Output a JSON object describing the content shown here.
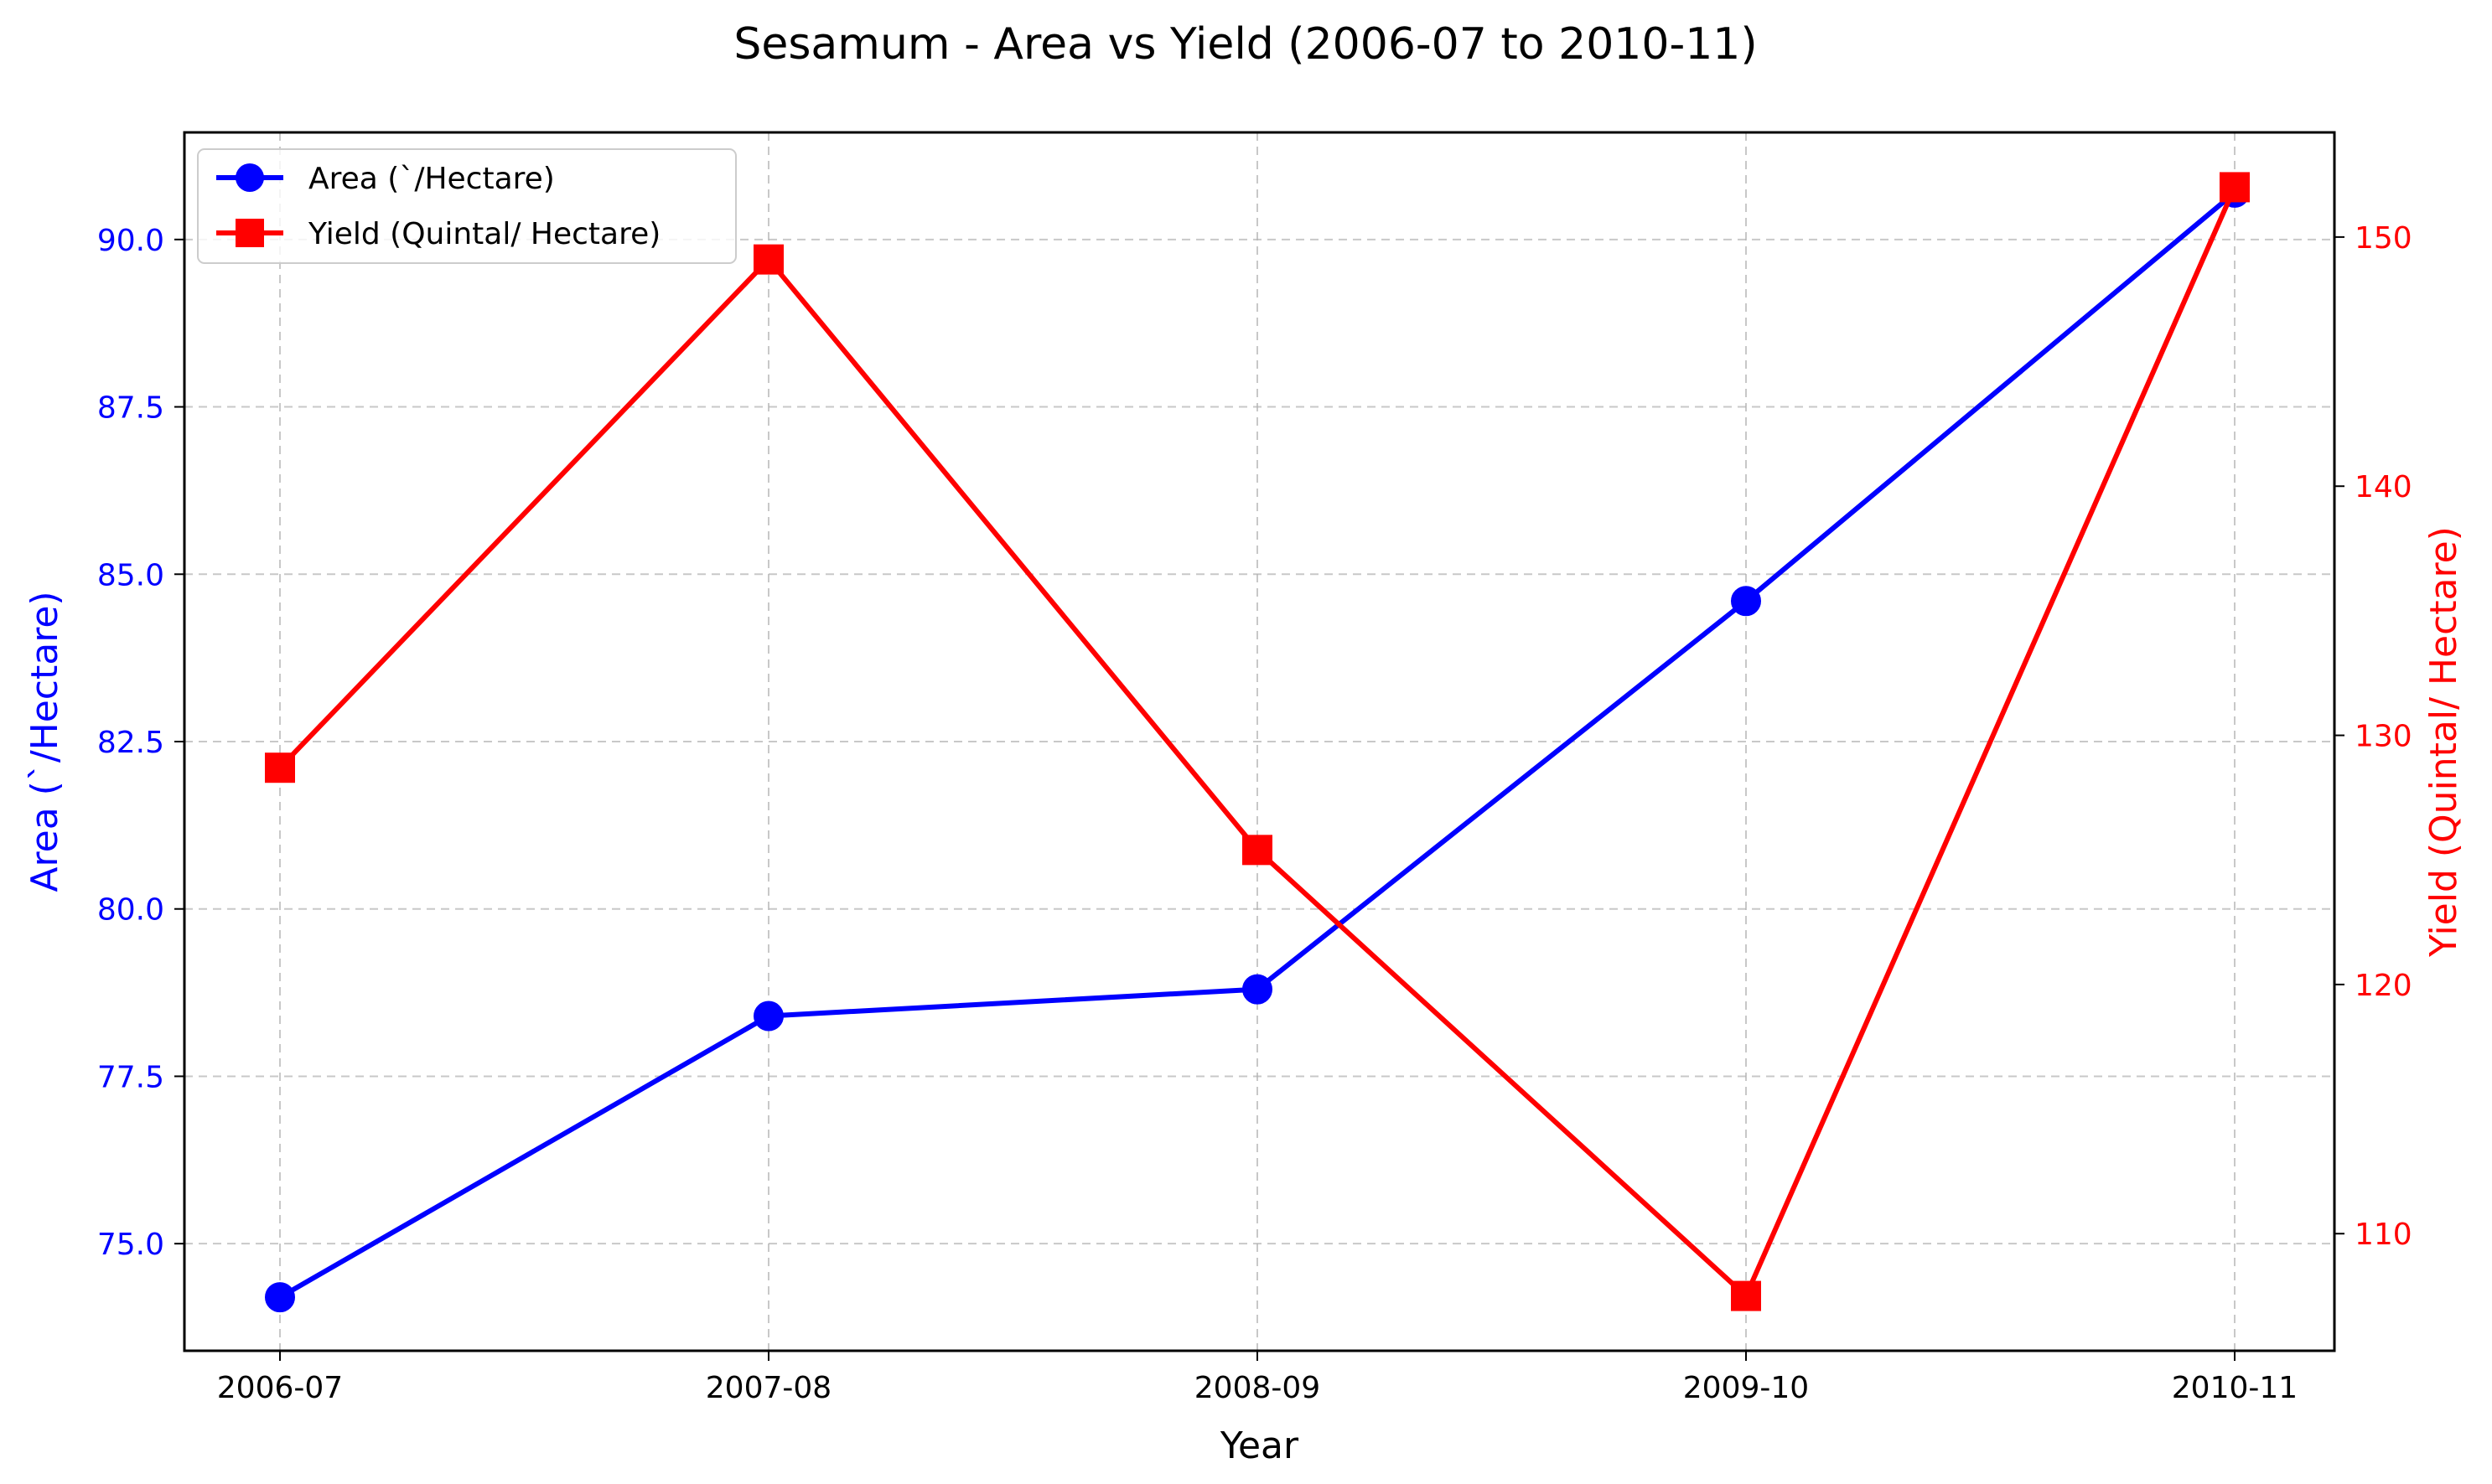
{
  "colors": {
    "area": "#0000ff",
    "yield": "#ff0000",
    "grid": "#b0b0b0",
    "axes": "#000000",
    "legend_border": "#cccccc"
  },
  "chart_data": {
    "type": "line",
    "title": "Sesamum - Area vs Yield (2006-07 to 2010-11)",
    "xlabel": "Year",
    "categories": [
      "2006-07",
      "2007-08",
      "2008-09",
      "2009-10",
      "2010-11"
    ],
    "grid": true,
    "legend_position": "top-left",
    "series": [
      {
        "name": "Area (`/Hectare)",
        "axis": "left",
        "marker": "circle",
        "color": "#0000ff",
        "values": [
          74.2,
          78.4,
          78.8,
          84.6,
          90.7
        ]
      },
      {
        "name": "Yield (Quintal/ Hectare)",
        "axis": "right",
        "marker": "square",
        "color": "#ff0000",
        "values": [
          128.7,
          149.1,
          125.4,
          107.5,
          152.0
        ]
      }
    ],
    "y_left": {
      "label": "Area (`/Hectare)",
      "lim": [
        73.4,
        91.6
      ],
      "ticks": [
        75.0,
        77.5,
        80.0,
        82.5,
        85.0,
        87.5,
        90.0
      ],
      "tick_labels": [
        "75.0",
        "77.5",
        "80.0",
        "82.5",
        "85.0",
        "87.5",
        "90.0"
      ]
    },
    "y_right": {
      "label": "Yield (Quintal/ Hectare)",
      "lim": [
        105.3,
        154.2
      ],
      "ticks": [
        110,
        120,
        130,
        140,
        150
      ],
      "tick_labels": [
        "110",
        "120",
        "130",
        "140",
        "150"
      ]
    }
  }
}
